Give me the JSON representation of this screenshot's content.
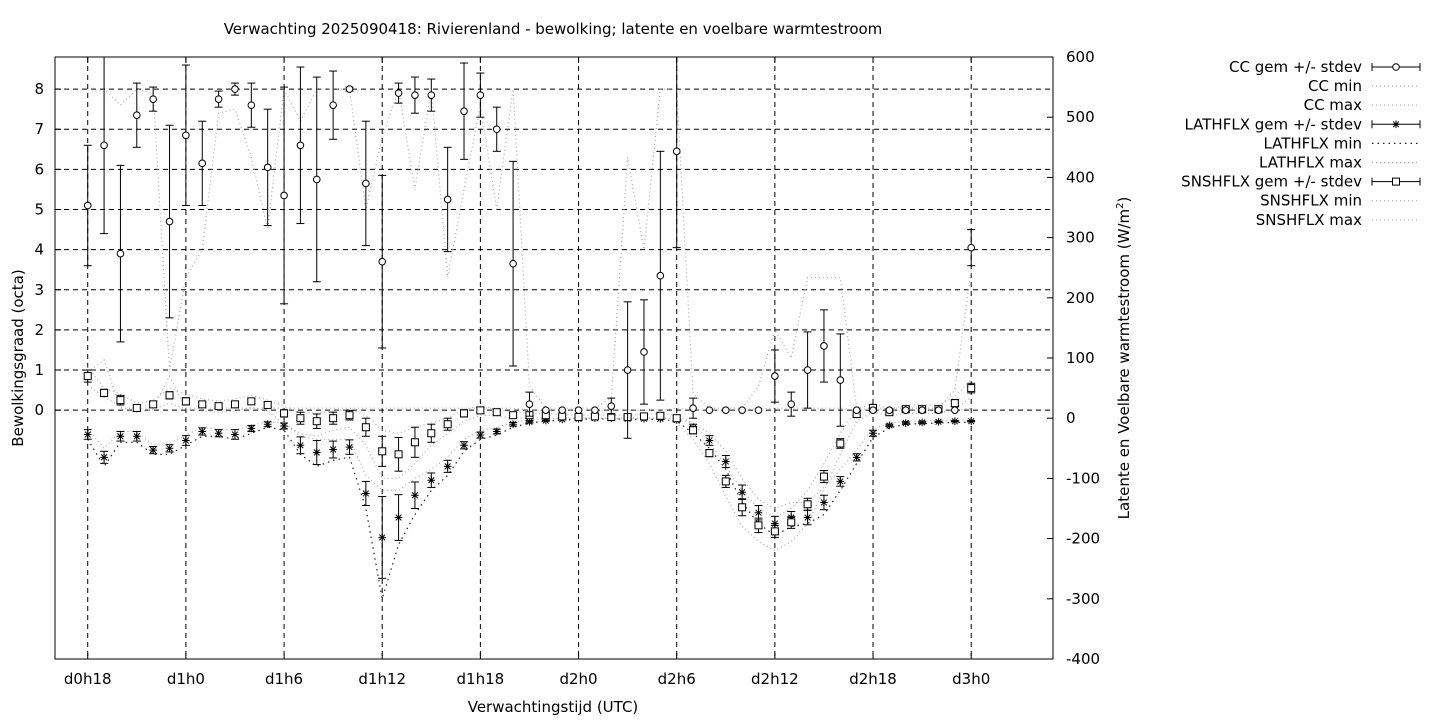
{
  "chart_data": {
    "type": "line",
    "title": "Verwachting 2025090418: Rivierenland - bewolking; latente en voelbare warmtestroom",
    "xlabel": "Verwachtingstijd (UTC)",
    "ylabel": "Bewolkingsgraad (octa)",
    "y2label_prefix": "Latente en Voelbare warmtestroom (W/m",
    "y2label_exp": "2",
    "y2label_suffix": ")",
    "x_unit": "hours since d0h0",
    "xlim": [
      16,
      77
    ],
    "ylim_left": [
      -6.2,
      8.8
    ],
    "yticks_left": [
      "0",
      "1",
      "2",
      "3",
      "4",
      "5",
      "6",
      "7",
      "8"
    ],
    "ylim_right": [
      -400,
      600
    ],
    "yticks_right": [
      "-400",
      "-300",
      "-200",
      "-100",
      "0",
      "100",
      "200",
      "300",
      "400",
      "500",
      "600"
    ],
    "xticks": [
      {
        "x": 18,
        "label": "d0h18"
      },
      {
        "x": 24,
        "label": "d1h0"
      },
      {
        "x": 30,
        "label": "d1h6"
      },
      {
        "x": 36,
        "label": "d1h12"
      },
      {
        "x": 42,
        "label": "d1h18"
      },
      {
        "x": 48,
        "label": "d2h0"
      },
      {
        "x": 54,
        "label": "d2h6"
      },
      {
        "x": 60,
        "label": "d2h12"
      },
      {
        "x": 66,
        "label": "d2h18"
      },
      {
        "x": 72,
        "label": "d3h0"
      }
    ],
    "grid": true,
    "legend_position": "outside-right",
    "legend": [
      {
        "label": "CC gem +/- stdev",
        "style": "errorbar-circle"
      },
      {
        "label": "CC min",
        "style": "dotted"
      },
      {
        "label": "CC max",
        "style": "dotted"
      },
      {
        "label": "LATHFLX gem +/- stdev",
        "style": "errorbar-star"
      },
      {
        "label": "LATHFLX min",
        "style": "dotted-dark"
      },
      {
        "label": "LATHFLX max",
        "style": "dotted"
      },
      {
        "label": "SNSHFLX gem +/- stdev",
        "style": "errorbar-square"
      },
      {
        "label": "SNSHFLX min",
        "style": "dotted"
      },
      {
        "label": "SNSHFLX max",
        "style": "dotted"
      }
    ],
    "cc_series": {
      "axis": "left",
      "x": [
        18,
        19,
        20,
        21,
        22,
        23,
        24,
        25,
        26,
        27,
        28,
        29,
        30,
        31,
        32,
        33,
        34,
        35,
        36,
        37,
        38,
        39,
        40,
        41,
        42,
        43,
        44,
        45,
        46,
        47,
        48,
        49,
        50,
        51,
        52,
        53,
        54,
        55,
        56,
        57,
        58,
        59,
        60,
        61,
        62,
        63,
        64,
        65,
        66,
        67,
        68,
        69,
        70,
        71,
        72
      ],
      "mean": [
        5.1,
        6.6,
        3.9,
        7.35,
        7.75,
        4.7,
        6.85,
        6.15,
        7.75,
        8.0,
        7.6,
        6.05,
        5.35,
        6.6,
        5.75,
        7.6,
        8.0,
        5.65,
        3.7,
        7.9,
        7.85,
        7.85,
        5.25,
        7.45,
        7.85,
        7.0,
        3.65,
        0.15,
        0.0,
        0.0,
        0.0,
        0.0,
        0.1,
        1.0,
        1.45,
        3.35,
        6.45,
        0.05,
        0.0,
        0.0,
        0.0,
        0.0,
        0.85,
        0.15,
        1.0,
        1.6,
        0.75,
        0.0,
        0.0,
        0.0,
        0.0,
        0.0,
        0.0,
        0.0,
        4.05
      ],
      "std": [
        1.5,
        2.2,
        2.2,
        0.8,
        0.3,
        2.4,
        1.75,
        1.05,
        0.2,
        0.15,
        0.55,
        1.45,
        2.7,
        1.95,
        2.55,
        0.85,
        0.05,
        1.55,
        2.15,
        0.25,
        0.45,
        0.4,
        1.3,
        1.2,
        0.55,
        0.55,
        2.55,
        0.3,
        0.0,
        0.0,
        0.0,
        0.0,
        0.2,
        1.7,
        1.3,
        3.1,
        2.4,
        0.25,
        0.0,
        0.0,
        0.0,
        0.0,
        0.65,
        0.3,
        0.95,
        0.9,
        1.15,
        0.0,
        0.0,
        0.0,
        0.0,
        0.0,
        0.0,
        0.0,
        0.45
      ]
    },
    "lathflx_series": {
      "axis": "right",
      "x": [
        18,
        19,
        20,
        21,
        22,
        23,
        24,
        25,
        26,
        27,
        28,
        29,
        30,
        31,
        32,
        33,
        34,
        35,
        36,
        37,
        38,
        39,
        40,
        41,
        42,
        43,
        44,
        45,
        46,
        47,
        48,
        49,
        50,
        51,
        52,
        53,
        54,
        55,
        56,
        57,
        58,
        59,
        60,
        61,
        62,
        63,
        64,
        65,
        66,
        67,
        68,
        69,
        70,
        71,
        72
      ],
      "mean": [
        -27,
        -65,
        -30,
        -30,
        -53,
        -50,
        -37,
        -22,
        -25,
        -27,
        -17,
        -10,
        -13,
        -45,
        -57,
        -52,
        -48,
        -125,
        -198,
        -165,
        -128,
        -103,
        -80,
        -45,
        -28,
        -22,
        -10,
        -6,
        -4,
        -2,
        -1,
        0,
        0,
        -1,
        -1,
        -1,
        -3,
        -16,
        -37,
        -72,
        -123,
        -157,
        -175,
        -165,
        -165,
        -140,
        -105,
        -65,
        -25,
        -12,
        -8,
        -7,
        -6,
        -5,
        -5
      ],
      "std": [
        8,
        10,
        8,
        8,
        6,
        6,
        8,
        6,
        6,
        8,
        5,
        4,
        5,
        14,
        20,
        14,
        12,
        20,
        68,
        38,
        22,
        12,
        10,
        6,
        5,
        4,
        3,
        2,
        1,
        1,
        1,
        0,
        0,
        1,
        1,
        1,
        1,
        6,
        8,
        10,
        12,
        12,
        12,
        10,
        12,
        12,
        8,
        6,
        5,
        2,
        2,
        2,
        1,
        1,
        1
      ]
    },
    "snshflx_series": {
      "axis": "right",
      "x": [
        18,
        19,
        20,
        21,
        22,
        23,
        24,
        25,
        26,
        27,
        28,
        29,
        30,
        31,
        32,
        33,
        34,
        35,
        36,
        37,
        38,
        39,
        40,
        41,
        42,
        43,
        44,
        45,
        46,
        47,
        48,
        49,
        50,
        51,
        52,
        53,
        54,
        55,
        56,
        57,
        58,
        59,
        60,
        61,
        62,
        63,
        64,
        65,
        66,
        67,
        68,
        69,
        70,
        71,
        72
      ],
      "mean": [
        70,
        42,
        30,
        17,
        23,
        38,
        28,
        23,
        20,
        23,
        28,
        22,
        8,
        0,
        -5,
        0,
        5,
        -15,
        -55,
        -60,
        -40,
        -25,
        -10,
        8,
        13,
        10,
        5,
        5,
        5,
        3,
        2,
        3,
        2,
        2,
        3,
        4,
        0,
        -20,
        -58,
        -105,
        -148,
        -178,
        -188,
        -173,
        -143,
        -97,
        -42,
        7,
        17,
        10,
        15,
        15,
        15,
        25,
        50
      ],
      "std": [
        10,
        6,
        8,
        5,
        4,
        6,
        6,
        4,
        4,
        4,
        4,
        4,
        6,
        10,
        12,
        10,
        8,
        15,
        25,
        28,
        25,
        15,
        10,
        6,
        4,
        4,
        4,
        4,
        4,
        2,
        2,
        2,
        2,
        2,
        2,
        2,
        4,
        6,
        6,
        10,
        14,
        12,
        10,
        10,
        10,
        10,
        8,
        6,
        4,
        4,
        4,
        4,
        4,
        6,
        8
      ]
    },
    "cc_min": {
      "axis": "left",
      "x": [
        18,
        19,
        20,
        22,
        23,
        24,
        25,
        26,
        27,
        28,
        29,
        30,
        31,
        32,
        33,
        34,
        35,
        36,
        37,
        38,
        39,
        40,
        41,
        42,
        43,
        44,
        45,
        46,
        52,
        53,
        54,
        55,
        56,
        60,
        61,
        62,
        63,
        64,
        65,
        70,
        71,
        72
      ],
      "y": [
        0.95,
        1.25,
        0.05,
        0.05,
        0.85,
        0.05,
        0.05,
        0.05,
        0.05,
        0.05,
        0.05,
        0.05,
        0.05,
        0.05,
        0.05,
        0.05,
        0.05,
        0.05,
        0.05,
        0.05,
        0.05,
        0.05,
        0.05,
        0.05,
        0.05,
        0.05,
        0.0,
        0.0,
        0.0,
        0.0,
        0.05,
        0.0,
        0.0,
        0.05,
        0.05,
        0.05,
        0.05,
        0.05,
        0.0,
        0.0,
        0.0,
        0.05
      ]
    },
    "cc_max": {
      "axis": "left",
      "x": [
        18,
        19,
        20,
        21,
        22,
        23,
        24,
        25,
        26,
        27,
        28,
        29,
        30,
        31,
        32,
        33,
        34,
        35,
        36,
        37,
        38,
        39,
        40,
        41,
        42,
        43,
        44,
        45,
        46,
        47,
        48,
        49,
        50,
        51,
        52,
        53,
        54,
        55,
        56,
        57,
        58,
        59,
        60,
        61,
        62,
        63,
        64,
        65,
        66,
        67,
        68,
        69,
        70,
        71,
        72
      ],
      "y": [
        7.9,
        8.0,
        7.6,
        8.0,
        7.9,
        1.0,
        3.3,
        4.0,
        7.4,
        7.5,
        6.3,
        4.5,
        8.0,
        7.2,
        8.0,
        8.0,
        8.0,
        5.0,
        6.8,
        8.0,
        5.5,
        8.0,
        3.3,
        5.5,
        7.6,
        5.0,
        8.0,
        0.6,
        0.05,
        0.05,
        0.05,
        0.05,
        0.3,
        6.3,
        4.0,
        8.0,
        8.0,
        0.4,
        0.05,
        0.05,
        0.05,
        0.6,
        2.0,
        1.3,
        3.3,
        3.3,
        3.3,
        0.05,
        0.05,
        0.05,
        0.05,
        0.05,
        0.05,
        0.5,
        3.5
      ]
    },
    "lathflx_min": {
      "axis": "right",
      "x": [
        18,
        19,
        20,
        21,
        22,
        23,
        24,
        25,
        26,
        27,
        28,
        29,
        30,
        31,
        32,
        33,
        34,
        35,
        36,
        37,
        38,
        39,
        40,
        41,
        42,
        43,
        44,
        45,
        46,
        47,
        48,
        49,
        50,
        51,
        52,
        53,
        54,
        55,
        56,
        57,
        58,
        59,
        60,
        61,
        62,
        63,
        64,
        65,
        66,
        67,
        68,
        69,
        70,
        71,
        72
      ],
      "y": [
        -35,
        -80,
        -40,
        -40,
        -60,
        -60,
        -45,
        -30,
        -30,
        -35,
        -25,
        -15,
        -20,
        -60,
        -80,
        -70,
        -65,
        -150,
        -300,
        -210,
        -160,
        -120,
        -95,
        -55,
        -35,
        -28,
        -15,
        -8,
        -5,
        -3,
        -2,
        -1,
        -1,
        -2,
        -2,
        -2,
        -5,
        -25,
        -50,
        -85,
        -140,
        -175,
        -195,
        -180,
        -175,
        -160,
        -120,
        -75,
        -32,
        -16,
        -10,
        -9,
        -8,
        -7,
        -7
      ]
    },
    "lathflx_max": {
      "axis": "right",
      "x": [
        18,
        19,
        20,
        21,
        22,
        23,
        24,
        25,
        26,
        27,
        28,
        29,
        30,
        31,
        32,
        33,
        34,
        35,
        36,
        37,
        38,
        39,
        40,
        41,
        42,
        43,
        44,
        45,
        46,
        47,
        48,
        49,
        50,
        51,
        52,
        53,
        54,
        55,
        56,
        57,
        58,
        59,
        60,
        61,
        62,
        63,
        64,
        65,
        66,
        67,
        68,
        69,
        70,
        71,
        72
      ],
      "y": [
        -18,
        -50,
        -22,
        -22,
        -45,
        -42,
        -28,
        -15,
        -18,
        -20,
        -12,
        -6,
        -8,
        -30,
        -35,
        -35,
        -35,
        -95,
        -120,
        -120,
        -100,
        -85,
        -65,
        -35,
        -20,
        -16,
        -6,
        -3,
        -2,
        -1,
        0,
        0,
        0,
        0,
        0,
        0,
        -1,
        -8,
        -25,
        -55,
        -100,
        -135,
        -150,
        -140,
        -140,
        -115,
        -85,
        -52,
        -18,
        -8,
        -5,
        -5,
        -4,
        -3,
        -3
      ]
    },
    "snshflx_min": {
      "axis": "right",
      "x": [
        18,
        19,
        20,
        21,
        22,
        23,
        24,
        25,
        26,
        27,
        28,
        29,
        30,
        31,
        32,
        33,
        34,
        35,
        36,
        37,
        38,
        39,
        40,
        41,
        42,
        43,
        44,
        45,
        46,
        47,
        48,
        49,
        50,
        51,
        52,
        53,
        54,
        55,
        56,
        57,
        58,
        59,
        60,
        61,
        62,
        63,
        64,
        65,
        66,
        67,
        68,
        69,
        70,
        71,
        72
      ],
      "y": [
        55,
        35,
        20,
        10,
        15,
        25,
        15,
        12,
        10,
        12,
        18,
        12,
        -10,
        -25,
        -30,
        -20,
        -15,
        -45,
        -100,
        -100,
        -75,
        -45,
        -25,
        -5,
        5,
        4,
        0,
        0,
        0,
        0,
        0,
        0,
        0,
        0,
        0,
        0,
        -8,
        -35,
        -75,
        -130,
        -180,
        -205,
        -220,
        -205,
        -175,
        -120,
        -60,
        -5,
        10,
        4,
        8,
        8,
        8,
        15,
        35
      ]
    },
    "snshflx_max": {
      "axis": "right",
      "x": [
        18,
        19,
        20,
        21,
        22,
        23,
        24,
        25,
        26,
        27,
        28,
        29,
        30,
        31,
        32,
        33,
        34,
        35,
        36,
        37,
        38,
        39,
        40,
        41,
        42,
        43,
        44,
        45,
        46,
        47,
        48,
        49,
        50,
        51,
        52,
        53,
        54,
        55,
        56,
        57,
        58,
        59,
        60,
        61,
        62,
        63,
        64,
        65,
        66,
        67,
        68,
        69,
        70,
        71,
        72
      ],
      "y": [
        85,
        50,
        40,
        25,
        30,
        50,
        40,
        32,
        28,
        32,
        38,
        30,
        20,
        10,
        8,
        12,
        15,
        5,
        -20,
        -25,
        -15,
        -8,
        0,
        15,
        20,
        15,
        10,
        8,
        8,
        6,
        5,
        5,
        5,
        5,
        6,
        8,
        5,
        -8,
        -40,
        -80,
        -120,
        -150,
        -165,
        -150,
        -120,
        -75,
        -25,
        15,
        25,
        15,
        22,
        22,
        22,
        35,
        65
      ]
    }
  }
}
